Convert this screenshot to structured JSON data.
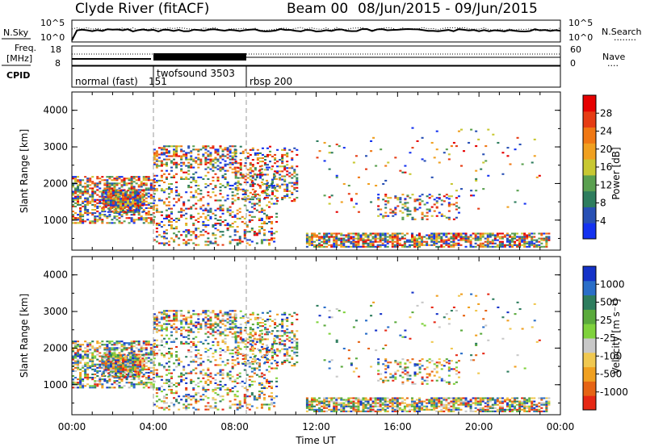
{
  "header": {
    "title": "Clyde River (fitACF)",
    "beam": "Beam 00",
    "date_range": "08/Jun/2015 - 09/Jun/2015"
  },
  "panels": {
    "noise": {
      "left_label": "N.Sky",
      "left_ticks": [
        "10^5",
        "10^0"
      ],
      "right_ticks": [
        "10^5",
        "10^0"
      ],
      "right_label": "N.Search",
      "right_legend": "........"
    },
    "freq": {
      "left_label_line1": "Freq.",
      "left_label_line2": "[MHz]",
      "left_ticks": [
        "18",
        "8"
      ],
      "right_ticks": [
        "60",
        "0"
      ],
      "right_label": "Nave",
      "right_legend": "...."
    },
    "cpid": {
      "left_label": "CPID",
      "segments": [
        {
          "label": "normal (fast)",
          "start": 0,
          "end": 4
        },
        {
          "label": "151",
          "start": 0,
          "end": 4
        },
        {
          "label": "twofsound 3503",
          "start": 4,
          "end": 8.5
        },
        {
          "label": "rbsp 200",
          "start": 8.5,
          "end": 24
        }
      ]
    }
  },
  "chart_data": [
    {
      "type": "heatmap",
      "title": "Power",
      "ylabel": "Slant Range [km]",
      "ylim": [
        180,
        4500
      ],
      "yticks": [
        "1000",
        "2000",
        "3000",
        "4000"
      ],
      "colorbar": {
        "label": "Power [dB]",
        "ticks": [
          "4",
          "8",
          "12",
          "16",
          "20",
          "24",
          "28"
        ],
        "colors": [
          "#1432f0",
          "#2850b4",
          "#2e7d5e",
          "#5aa050",
          "#c8c832",
          "#f0a020",
          "#f07814",
          "#e63c14",
          "#e60000"
        ]
      }
    },
    {
      "type": "heatmap",
      "title": "Velocity",
      "ylabel": "Slant Range [km]",
      "ylim": [
        180,
        4500
      ],
      "yticks": [
        "1000",
        "2000",
        "3000",
        "4000"
      ],
      "xlabel": "Time UT",
      "xticks": [
        "00:00",
        "04:00",
        "08:00",
        "12:00",
        "16:00",
        "20:00",
        "00:00"
      ],
      "colorbar": {
        "label": "Velocity [m s⁻¹]",
        "ticks": [
          "1000",
          "500",
          "25",
          "-25",
          "-100",
          "-500",
          "-1000"
        ],
        "colors": [
          "#1432c8",
          "#2a6ec8",
          "#2e7d5e",
          "#5aaa3c",
          "#7fd23c",
          "#c8c8c8",
          "#f0c850",
          "#f0a020",
          "#e66414",
          "#e62814"
        ]
      }
    }
  ]
}
